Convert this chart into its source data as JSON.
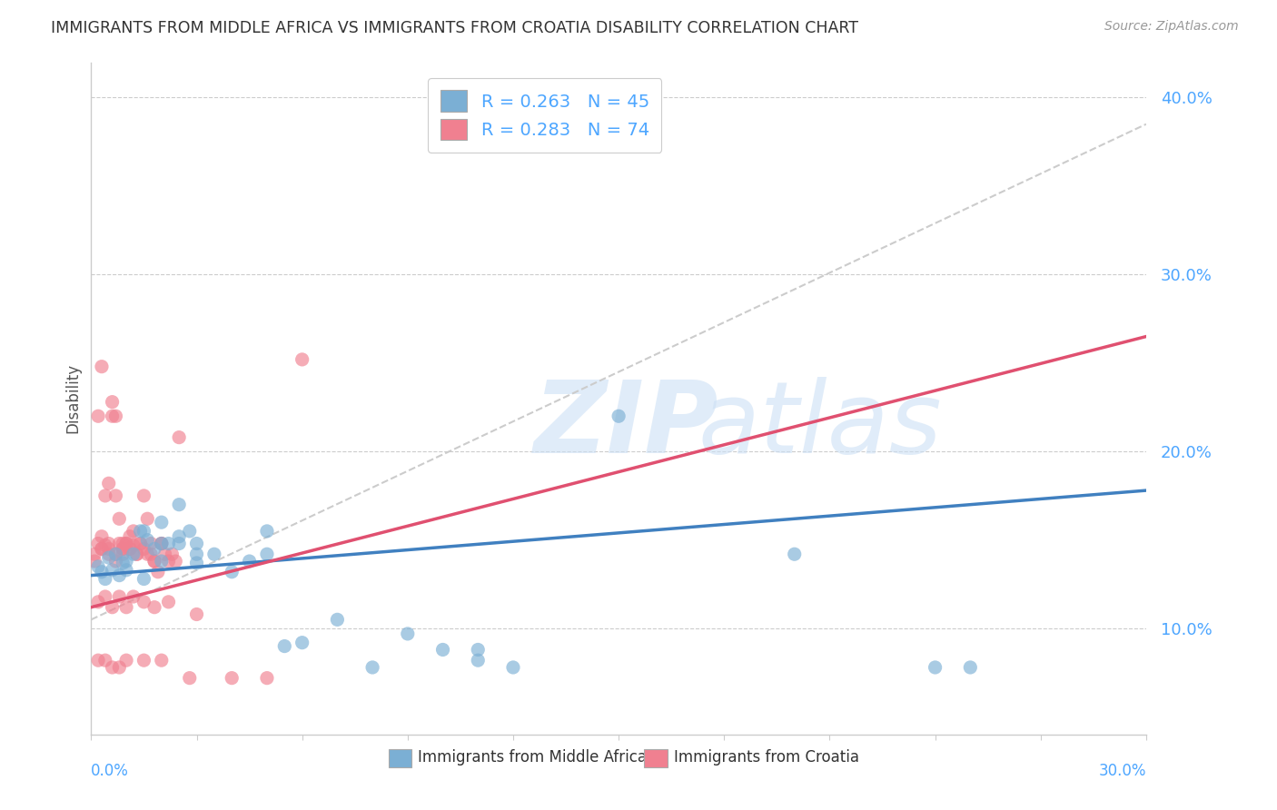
{
  "title": "IMMIGRANTS FROM MIDDLE AFRICA VS IMMIGRANTS FROM CROATIA DISABILITY CORRELATION CHART",
  "source": "Source: ZipAtlas.com",
  "ylabel": "Disability",
  "xlim": [
    0.0,
    0.3
  ],
  "ylim": [
    0.04,
    0.42
  ],
  "yticks": [
    0.1,
    0.2,
    0.3,
    0.4
  ],
  "ytick_labels": [
    "10.0%",
    "20.0%",
    "30.0%",
    "40.0%"
  ],
  "series1_name": "Immigrants from Middle Africa",
  "series1_color": "#7bafd4",
  "series1_line_color": "#4080c0",
  "series1_R": 0.263,
  "series1_N": 45,
  "series2_name": "Immigrants from Croatia",
  "series2_color": "#f08090",
  "series2_line_color": "#e05070",
  "series2_R": 0.283,
  "series2_N": 74,
  "background_color": "#ffffff",
  "grid_color": "#cccccc",
  "label_color": "#4da6ff",
  "tick_color": "#4da6ff",
  "series1_x": [
    0.002,
    0.003,
    0.004,
    0.005,
    0.006,
    0.007,
    0.008,
    0.009,
    0.01,
    0.012,
    0.014,
    0.016,
    0.018,
    0.02,
    0.022,
    0.025,
    0.028,
    0.03,
    0.035,
    0.04,
    0.045,
    0.05,
    0.055,
    0.06,
    0.07,
    0.08,
    0.09,
    0.1,
    0.11,
    0.12,
    0.01,
    0.015,
    0.02,
    0.025,
    0.03,
    0.015,
    0.02,
    0.025,
    0.03,
    0.05,
    0.15,
    0.2,
    0.25,
    0.11,
    0.24
  ],
  "series1_y": [
    0.135,
    0.132,
    0.128,
    0.14,
    0.133,
    0.142,
    0.13,
    0.137,
    0.138,
    0.142,
    0.155,
    0.15,
    0.145,
    0.16,
    0.148,
    0.17,
    0.155,
    0.148,
    0.142,
    0.132,
    0.138,
    0.142,
    0.09,
    0.092,
    0.105,
    0.078,
    0.097,
    0.088,
    0.082,
    0.078,
    0.133,
    0.128,
    0.138,
    0.148,
    0.142,
    0.155,
    0.148,
    0.152,
    0.137,
    0.155,
    0.22,
    0.142,
    0.078,
    0.088,
    0.078
  ],
  "series2_x": [
    0.001,
    0.002,
    0.003,
    0.004,
    0.005,
    0.006,
    0.007,
    0.008,
    0.009,
    0.01,
    0.011,
    0.012,
    0.013,
    0.014,
    0.015,
    0.016,
    0.017,
    0.018,
    0.019,
    0.02,
    0.021,
    0.022,
    0.023,
    0.024,
    0.025,
    0.003,
    0.005,
    0.007,
    0.009,
    0.002,
    0.004,
    0.006,
    0.008,
    0.01,
    0.012,
    0.014,
    0.016,
    0.018,
    0.02,
    0.003,
    0.005,
    0.007,
    0.009,
    0.011,
    0.013,
    0.015,
    0.017,
    0.001,
    0.003,
    0.005,
    0.007,
    0.009,
    0.011,
    0.002,
    0.004,
    0.006,
    0.008,
    0.01,
    0.015,
    0.02,
    0.002,
    0.004,
    0.006,
    0.008,
    0.01,
    0.012,
    0.015,
    0.018,
    0.022,
    0.03,
    0.06,
    0.04,
    0.05,
    0.028
  ],
  "series2_y": [
    0.142,
    0.22,
    0.152,
    0.147,
    0.142,
    0.228,
    0.175,
    0.148,
    0.142,
    0.148,
    0.152,
    0.147,
    0.142,
    0.148,
    0.175,
    0.162,
    0.148,
    0.138,
    0.132,
    0.148,
    0.142,
    0.138,
    0.142,
    0.138,
    0.208,
    0.248,
    0.182,
    0.22,
    0.148,
    0.148,
    0.175,
    0.22,
    0.162,
    0.148,
    0.155,
    0.148,
    0.142,
    0.138,
    0.148,
    0.145,
    0.145,
    0.142,
    0.145,
    0.145,
    0.142,
    0.145,
    0.142,
    0.138,
    0.145,
    0.148,
    0.138,
    0.145,
    0.145,
    0.082,
    0.082,
    0.078,
    0.078,
    0.082,
    0.082,
    0.082,
    0.115,
    0.118,
    0.112,
    0.118,
    0.112,
    0.118,
    0.115,
    0.112,
    0.115,
    0.108,
    0.252,
    0.072,
    0.072,
    0.072
  ],
  "trend1_x0": 0.0,
  "trend1_y0": 0.13,
  "trend1_x1": 0.3,
  "trend1_y1": 0.178,
  "trend2_x0": 0.0,
  "trend2_y0": 0.112,
  "trend2_x1": 0.3,
  "trend2_y1": 0.265,
  "gray_line_x0": 0.0,
  "gray_line_y0": 0.105,
  "gray_line_x1": 0.3,
  "gray_line_y1": 0.385
}
